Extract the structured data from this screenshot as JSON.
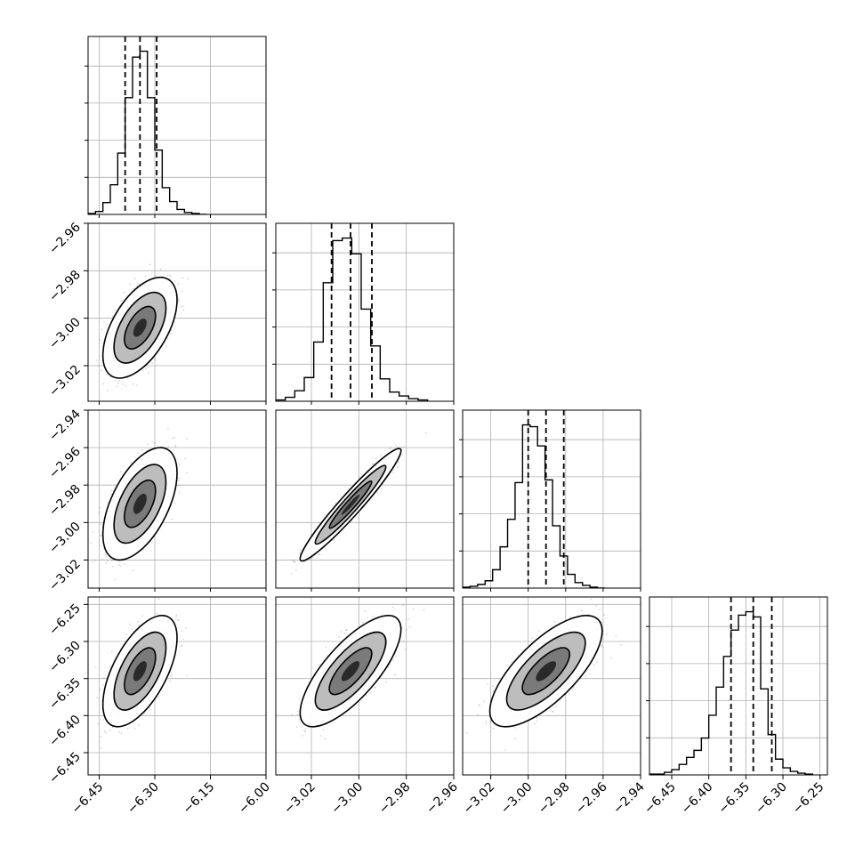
{
  "chart_data": {
    "type": "corner",
    "colors": {
      "line": "#000000",
      "grid": "#b0b0b0",
      "scatter": "#4a4a4a"
    },
    "grid": true,
    "parameters": [
      {
        "ticks": [
          -6.45,
          -6.3,
          -6.15,
          -6.0
        ],
        "tick_labels": [
          "−6.45",
          "−6.30",
          "−6.15",
          "−6.00"
        ],
        "range": [
          -6.48,
          -6.0
        ],
        "quantiles": [
          -6.38,
          -6.34,
          -6.295
        ],
        "hist_bins": [
          -6.48,
          -6.46,
          -6.44,
          -6.42,
          -6.4,
          -6.38,
          -6.36,
          -6.34,
          -6.32,
          -6.3,
          -6.28,
          -6.26,
          -6.24,
          -6.22,
          -6.2,
          -6.18,
          -6.16
        ],
        "hist_counts": [
          1,
          3,
          12,
          30,
          62,
          118,
          159,
          165,
          118,
          65,
          27,
          13,
          5,
          2,
          1,
          0
        ]
      },
      {
        "ticks": [
          -3.02,
          -3.0,
          -2.98,
          -2.96
        ],
        "tick_labels": [
          "−3.02",
          "−3.00",
          "−2.98",
          "−2.96"
        ],
        "range": [
          -3.035,
          -2.96
        ],
        "quantiles": [
          -3.0115,
          -3.0035,
          -2.9945
        ],
        "hist_bins": [
          -3.035,
          -3.031,
          -3.027,
          -3.023,
          -3.019,
          -3.015,
          -3.011,
          -3.007,
          -3.003,
          -2.999,
          -2.995,
          -2.991,
          -2.987,
          -2.983,
          -2.979,
          -2.975,
          -2.971
        ],
        "hist_counts": [
          1,
          3,
          8,
          18,
          45,
          90,
          122,
          124,
          112,
          70,
          42,
          17,
          7,
          4,
          2,
          1
        ]
      },
      {
        "ticks": [
          -3.02,
          -3.0,
          -2.98,
          -2.96,
          -2.94
        ],
        "tick_labels": [
          "−3.02",
          "−3.00",
          "−2.98",
          "−2.96",
          "−2.94"
        ],
        "range": [
          -3.035,
          -2.94
        ],
        "quantiles": [
          -3.0,
          -2.9905,
          -2.981
        ],
        "hist_bins": [
          -3.035,
          -3.031,
          -3.027,
          -3.023,
          -3.019,
          -3.015,
          -3.011,
          -3.007,
          -3.003,
          -2.999,
          -2.995,
          -2.991,
          -2.987,
          -2.983,
          -2.979,
          -2.975,
          -2.971,
          -2.967,
          -2.963,
          -2.959
        ],
        "hist_counts": [
          1,
          2,
          4,
          8,
          20,
          45,
          75,
          115,
          178,
          176,
          155,
          118,
          68,
          35,
          15,
          6,
          3,
          1,
          0
        ]
      },
      {
        "ticks": [
          -6.45,
          -6.4,
          -6.35,
          -6.3,
          -6.25
        ],
        "tick_labels": [
          "−6.45",
          "−6.40",
          "−6.35",
          "−6.30",
          "−6.25"
        ],
        "range": [
          -6.48,
          -6.24
        ],
        "quantiles": [
          -6.37,
          -6.34,
          -6.315
        ],
        "hist_bins": [
          -6.48,
          -6.47,
          -6.46,
          -6.45,
          -6.44,
          -6.43,
          -6.42,
          -6.41,
          -6.4,
          -6.39,
          -6.38,
          -6.37,
          -6.36,
          -6.35,
          -6.34,
          -6.33,
          -6.32,
          -6.31,
          -6.3,
          -6.29,
          -6.28,
          -6.27,
          -6.26
        ],
        "hist_counts": [
          1,
          1,
          3,
          6,
          12,
          20,
          28,
          42,
          68,
          100,
          135,
          165,
          182,
          186,
          180,
          98,
          46,
          18,
          8,
          4,
          2,
          1
        ]
      }
    ],
    "pairs": [
      {
        "row": 1,
        "col": 0,
        "center": [
          -6.34,
          -3.004
        ],
        "sd": [
          0.04,
          0.0085
        ],
        "rho": 0.55,
        "dots": 1400
      },
      {
        "row": 2,
        "col": 0,
        "center": [
          -6.34,
          -2.99
        ],
        "sd": [
          0.04,
          0.012
        ],
        "rho": 0.55,
        "dots": 1400
      },
      {
        "row": 2,
        "col": 1,
        "center": [
          -3.0035,
          -2.9905
        ],
        "sd": [
          0.0085,
          0.012
        ],
        "rho": 0.96,
        "dots": 1400
      },
      {
        "row": 3,
        "col": 0,
        "center": [
          -6.34,
          -6.34
        ],
        "sd": [
          0.04,
          0.03
        ],
        "rho": 0.6,
        "dots": 1400
      },
      {
        "row": 3,
        "col": 1,
        "center": [
          -3.0035,
          -6.34
        ],
        "sd": [
          0.0085,
          0.03
        ],
        "rho": 0.75,
        "dots": 1400
      },
      {
        "row": 3,
        "col": 2,
        "center": [
          -2.9905,
          -6.34
        ],
        "sd": [
          0.012,
          0.03
        ],
        "rho": 0.72,
        "dots": 1400
      }
    ]
  }
}
